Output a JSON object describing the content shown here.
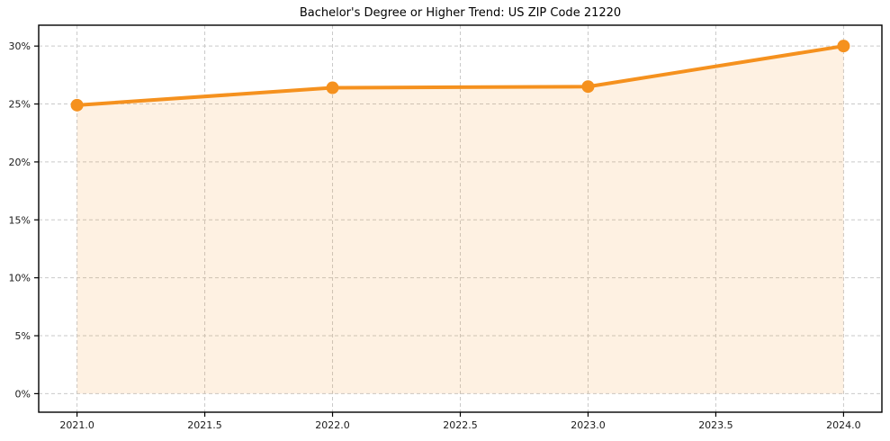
{
  "figure": {
    "background": "#ffffff"
  },
  "chart_data": {
    "type": "area",
    "title": "Bachelor's Degree or Higher Trend: US ZIP Code 21220",
    "x": [
      2021.0,
      2022.0,
      2023.0,
      2024.0
    ],
    "values": [
      24.9,
      26.4,
      26.5,
      30.0
    ],
    "xlabel": "",
    "ylabel": "",
    "xlim": [
      2020.85,
      2024.15
    ],
    "ylim": [
      -1.6,
      31.8
    ],
    "xticks": {
      "values": [
        2021.0,
        2021.5,
        2022.0,
        2022.5,
        2023.0,
        2023.5,
        2024.0
      ],
      "labels": [
        "2021.0",
        "2021.5",
        "2022.0",
        "2022.5",
        "2023.0",
        "2023.5",
        "2024.0"
      ]
    },
    "yticks": {
      "values": [
        0,
        5,
        10,
        15,
        20,
        25,
        30
      ],
      "labels": [
        "0%",
        "5%",
        "10%",
        "15%",
        "20%",
        "25%",
        "30%"
      ]
    },
    "grid": true,
    "grid_style": "dashed",
    "legend": "none",
    "marker": "circle",
    "fill_to": 0,
    "colors": {
      "line": "#f5911e",
      "fill": "#f5911e",
      "fill_opacity": 0.13,
      "grid": "#c9c9c9",
      "spine": "#000000",
      "tick_label": "#1a1a1a",
      "title": "#000000"
    }
  }
}
